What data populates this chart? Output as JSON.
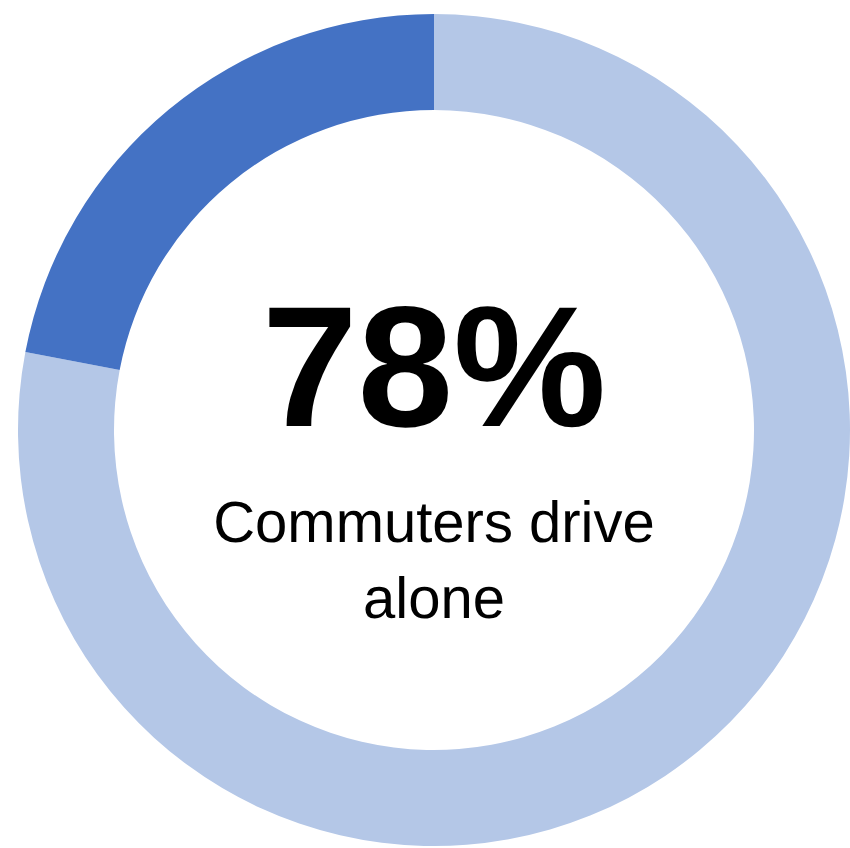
{
  "chart_data": {
    "type": "donut",
    "categories": [
      "Commuters drive alone",
      null
    ],
    "values": [
      78,
      22
    ],
    "colors": [
      "#b4c7e7",
      "#4472c4"
    ],
    "value_labels": [
      "78%",
      null
    ]
  }
}
